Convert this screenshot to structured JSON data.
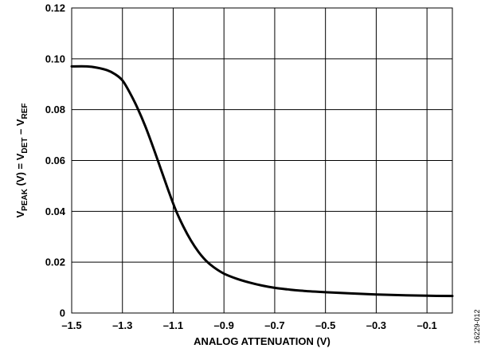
{
  "chart_data": {
    "type": "line",
    "title": "",
    "xlabel": "ANALOG ATTENUATION (V)",
    "ylabel": {
      "parts": [
        {
          "text": "V",
          "sub": false
        },
        {
          "text": "PEAK",
          "sub": true
        },
        {
          "text": " (V) = V",
          "sub": false
        },
        {
          "text": "DET",
          "sub": true
        },
        {
          "text": " – V",
          "sub": false
        },
        {
          "text": "REF",
          "sub": true
        }
      ]
    },
    "xlim": [
      -1.5,
      0.0
    ],
    "ylim": [
      0,
      0.12
    ],
    "x_ticks": [
      -1.5,
      -1.3,
      -1.1,
      -0.9,
      -0.7,
      -0.5,
      -0.3,
      -0.1
    ],
    "x_tick_labels": [
      "–1.5",
      "–1.3",
      "–1.1",
      "–0.9",
      "–0.7",
      "–0.5",
      "–0.3",
      "–0.1"
    ],
    "y_ticks": [
      0,
      0.02,
      0.04,
      0.06,
      0.08,
      0.1,
      0.12
    ],
    "y_tick_labels": [
      "0",
      "0.02",
      "0.04",
      "0.06",
      "0.08",
      "0.10",
      "0.12"
    ],
    "grid": true,
    "line_color": "#000000",
    "series": [
      {
        "x": [
          -1.5,
          -1.44,
          -1.4,
          -1.36,
          -1.33,
          -1.3,
          -1.27,
          -1.24,
          -1.21,
          -1.18,
          -1.15,
          -1.12,
          -1.09,
          -1.06,
          -1.03,
          -1.0,
          -0.97,
          -0.94,
          -0.9,
          -0.85,
          -0.8,
          -0.75,
          -0.7,
          -0.65,
          -0.6,
          -0.5,
          -0.4,
          -0.3,
          -0.2,
          -0.1,
          0.0
        ],
        "y": [
          0.097,
          0.097,
          0.0965,
          0.0955,
          0.094,
          0.0915,
          0.0865,
          0.0805,
          0.0735,
          0.0655,
          0.057,
          0.0485,
          0.0405,
          0.034,
          0.0285,
          0.024,
          0.0205,
          0.018,
          0.0155,
          0.0135,
          0.012,
          0.0108,
          0.0099,
          0.0093,
          0.0088,
          0.0082,
          0.0077,
          0.0073,
          0.007,
          0.0068,
          0.0067
        ]
      }
    ]
  },
  "figure_id": "16229-012"
}
